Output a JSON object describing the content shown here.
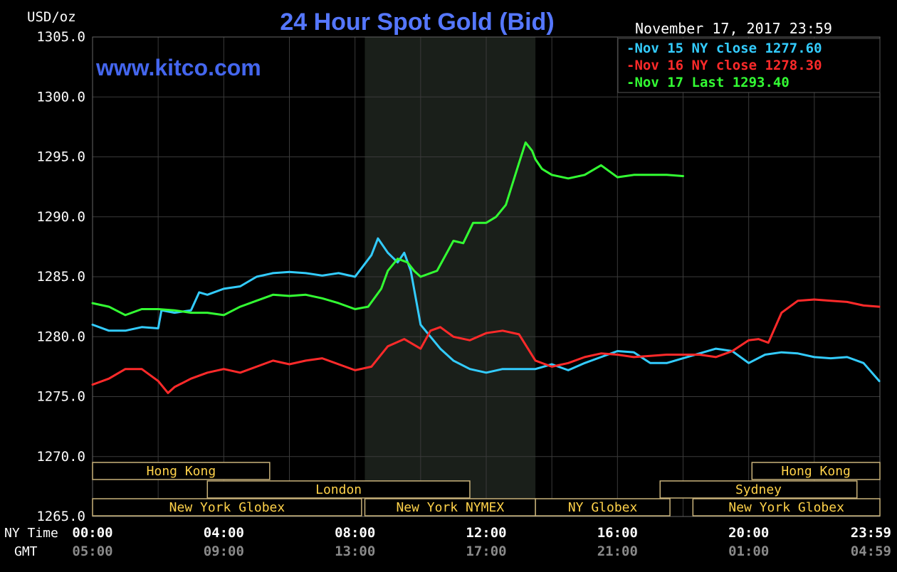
{
  "header": {
    "title": "24 Hour Spot Gold (Bid)",
    "unit_label": "USD/oz",
    "date_stamp": "November 17, 2017 23:59",
    "website": "www.kitco.com"
  },
  "footer": {
    "ny_time_label": "NY Time",
    "gmt_label": "GMT"
  },
  "colors": {
    "background": "#000000",
    "grid": "#3a3a3a",
    "session_shade": "#1a1f1a",
    "title": "#5577ff",
    "website": "#4466ee",
    "axis_text": "#ffffff",
    "gmt_text": "#8a8a8a",
    "market_text": "#ffd24a",
    "market_border": "#c9b27a"
  },
  "chart_data": {
    "type": "line",
    "title": "24 Hour Spot Gold (Bid)",
    "ylabel": "USD/oz",
    "ylim": [
      1265,
      1305
    ],
    "y_ticks": [
      "1265.0",
      "1270.0",
      "1275.0",
      "1280.0",
      "1285.0",
      "1290.0",
      "1295.0",
      "1300.0",
      "1305.0"
    ],
    "y_tick_values": [
      1265,
      1270,
      1275,
      1280,
      1285,
      1290,
      1295,
      1300,
      1305
    ],
    "xlim": [
      0,
      24
    ],
    "x_ticks_ny": [
      "00:00",
      "04:00",
      "08:00",
      "12:00",
      "16:00",
      "20:00",
      "23:59"
    ],
    "x_ticks_gmt": [
      "05:00",
      "09:00",
      "13:00",
      "17:00",
      "21:00",
      "01:00",
      "04:59"
    ],
    "x_tick_hours": [
      0,
      4,
      8,
      12,
      16,
      20,
      23.98
    ],
    "grid": true,
    "legend_position": "top-right",
    "shaded_session_hours": [
      8.3,
      13.5
    ],
    "series": [
      {
        "name": "Nov 15 NY close 1277.60",
        "color": "#33ccff",
        "x": [
          0,
          0.5,
          1,
          1.5,
          2,
          2.1,
          2.5,
          3,
          3.25,
          3.5,
          4,
          4.5,
          5,
          5.5,
          6,
          6.5,
          7,
          7.5,
          8,
          8.5,
          8.7,
          9,
          9.3,
          9.5,
          9.7,
          10,
          10.3,
          10.6,
          11,
          11.5,
          12,
          12.5,
          13,
          13.5,
          14,
          14.5,
          15,
          15.5,
          16,
          16.5,
          17,
          17.5,
          18,
          18.5,
          19,
          19.5,
          20,
          20.5,
          21,
          21.5,
          22,
          22.5,
          23,
          23.5,
          23.98
        ],
        "y": [
          1281,
          1280.5,
          1280.5,
          1280.8,
          1280.7,
          1282.2,
          1282,
          1282.2,
          1283.7,
          1283.5,
          1284,
          1284.2,
          1285,
          1285.3,
          1285.4,
          1285.3,
          1285.1,
          1285.3,
          1285,
          1286.8,
          1288.2,
          1287,
          1286.2,
          1287,
          1285.5,
          1281,
          1280,
          1279,
          1278,
          1277.3,
          1277,
          1277.3,
          1277.3,
          1277.3,
          1277.7,
          1277.2,
          1277.8,
          1278.3,
          1278.8,
          1278.7,
          1277.8,
          1277.8,
          1278.2,
          1278.6,
          1279,
          1278.8,
          1277.8,
          1278.5,
          1278.7,
          1278.6,
          1278.3,
          1278.2,
          1278.3,
          1277.8,
          1276.3
        ]
      },
      {
        "name": "Nov 16 NY close 1278.30",
        "color": "#ff2a2a",
        "x": [
          0,
          0.5,
          1,
          1.5,
          2,
          2.3,
          2.5,
          3,
          3.5,
          4,
          4.5,
          5,
          5.5,
          6,
          6.5,
          7,
          7.5,
          8,
          8.5,
          9,
          9.5,
          10,
          10.3,
          10.6,
          11,
          11.5,
          12,
          12.5,
          13,
          13.5,
          14,
          14.5,
          15,
          15.5,
          16,
          16.5,
          17,
          17.5,
          18,
          18.5,
          19,
          19.5,
          20,
          20.3,
          20.6,
          21,
          21.5,
          22,
          22.5,
          23,
          23.5,
          23.98
        ],
        "y": [
          1276,
          1276.5,
          1277.3,
          1277.3,
          1276.3,
          1275.3,
          1275.8,
          1276.5,
          1277,
          1277.3,
          1277,
          1277.5,
          1278,
          1277.7,
          1278,
          1278.2,
          1277.7,
          1277.2,
          1277.5,
          1279.2,
          1279.8,
          1279,
          1280.5,
          1280.8,
          1280,
          1279.7,
          1280.3,
          1280.5,
          1280.2,
          1278,
          1277.5,
          1277.8,
          1278.3,
          1278.6,
          1278.5,
          1278.3,
          1278.4,
          1278.5,
          1278.5,
          1278.5,
          1278.3,
          1278.8,
          1279.7,
          1279.8,
          1279.5,
          1282,
          1283,
          1283.1,
          1283,
          1282.9,
          1282.6,
          1282.5
        ]
      },
      {
        "name": "Nov 17 Last 1293.40",
        "color": "#33ff33",
        "x": [
          0,
          0.5,
          1,
          1.5,
          2,
          2.5,
          3,
          3.5,
          4,
          4.5,
          5,
          5.5,
          6,
          6.5,
          7,
          7.5,
          8,
          8.4,
          8.8,
          9,
          9.3,
          9.6,
          9.8,
          10,
          10.5,
          11,
          11.3,
          11.6,
          12,
          12.3,
          12.6,
          13,
          13.2,
          13.4,
          13.5,
          13.7,
          14,
          14.5,
          15,
          15.5,
          16,
          16.5,
          17,
          17.5,
          18
        ],
        "y": [
          1282.8,
          1282.5,
          1281.8,
          1282.3,
          1282.3,
          1282.2,
          1282,
          1282,
          1281.8,
          1282.5,
          1283,
          1283.5,
          1283.4,
          1283.5,
          1283.2,
          1282.8,
          1282.3,
          1282.5,
          1284,
          1285.5,
          1286.5,
          1286.2,
          1285.5,
          1285,
          1285.5,
          1288,
          1287.8,
          1289.5,
          1289.5,
          1290,
          1291,
          1294.5,
          1296.2,
          1295.5,
          1294.8,
          1294,
          1293.5,
          1293.2,
          1293.5,
          1294.3,
          1293.3,
          1293.5,
          1293.5,
          1293.5,
          1293.4
        ]
      }
    ],
    "legend": [
      {
        "dash": "-",
        "text": "Nov 15 NY close",
        "value": "1277.60",
        "color": "#33ccff"
      },
      {
        "dash": "-",
        "text": "Nov 16 NY close",
        "value": "1278.30",
        "color": "#ff2a2a"
      },
      {
        "dash": "-",
        "text": "Nov 17 Last",
        "value": "1293.40",
        "color": "#33ff33"
      }
    ],
    "markets": [
      {
        "label": "Hong Kong",
        "row": 0,
        "start": 0,
        "end": 5.4
      },
      {
        "label": "Hong Kong",
        "row": 0,
        "start": 20.1,
        "end": 24.0
      },
      {
        "label": "London",
        "row": 1,
        "start": 3.5,
        "end": 11.5
      },
      {
        "label": "Sydney",
        "row": 1,
        "start": 17.3,
        "end": 23.3
      },
      {
        "label": "New York Globex",
        "row": 2,
        "start": 0,
        "end": 8.2
      },
      {
        "label": "New York NYMEX",
        "row": 2,
        "start": 8.3,
        "end": 13.5
      },
      {
        "label": "NY Globex",
        "row": 2,
        "start": 13.5,
        "end": 17.6
      },
      {
        "label": "New York Globex",
        "row": 2,
        "start": 18.3,
        "end": 24.0
      }
    ]
  }
}
